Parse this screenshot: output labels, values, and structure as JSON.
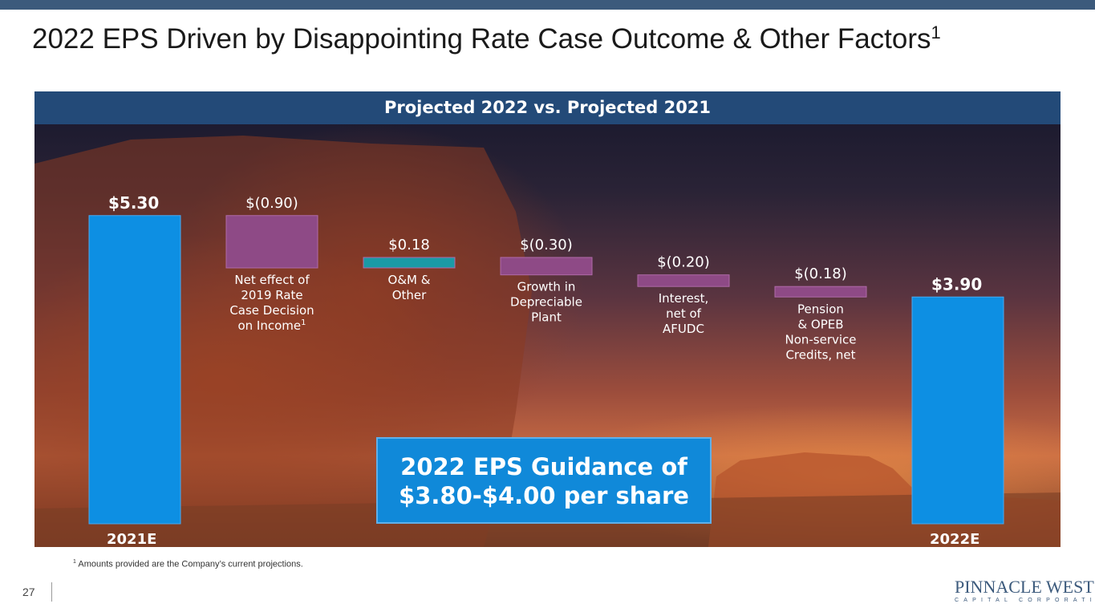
{
  "slide": {
    "title": "2022 EPS Driven by Disappointing Rate Case Outcome & Other Factors",
    "title_superscript": "1",
    "panel_header": "Projected 2022 vs. Projected 2021",
    "guidance_line1": "2022 EPS Guidance of",
    "guidance_line2": "$3.80-$4.00 per share",
    "footnote_marker": "1",
    "footnote": "Amounts provided are the Company’s current projections.",
    "page_number": "27",
    "logo_main": "PINNACLE WEST",
    "logo_sub": "CAPITAL CORPORATION"
  },
  "colors": {
    "total_bar": "#0d8fe3",
    "negative_bar": "#8e4a86",
    "positive_bar": "#1a9aa6",
    "header": "#234a78",
    "topbar": "#3c5a7c"
  },
  "chart_data": {
    "type": "bar",
    "subtype": "waterfall",
    "title": "Projected 2022 vs. Projected 2021",
    "ylim": [
      0,
      5.3
    ],
    "steps": [
      {
        "kind": "total",
        "value": 5.3,
        "value_label": "$5.30",
        "category": [
          "2021E"
        ]
      },
      {
        "kind": "delta",
        "value": -0.9,
        "value_label": "$(0.90)",
        "category": [
          "Net effect of",
          "2019 Rate",
          "Case Decision",
          "on Income"
        ],
        "label_superscript": "1"
      },
      {
        "kind": "delta",
        "value": 0.18,
        "value_label": "$0.18",
        "category": [
          "O&M &",
          "Other"
        ]
      },
      {
        "kind": "delta",
        "value": -0.3,
        "value_label": "$(0.30)",
        "category": [
          "Growth in",
          "Depreciable",
          "Plant"
        ]
      },
      {
        "kind": "delta",
        "value": -0.2,
        "value_label": "$(0.20)",
        "category": [
          "Interest,",
          "net of",
          "AFUDC"
        ]
      },
      {
        "kind": "delta",
        "value": -0.18,
        "value_label": "$(0.18)",
        "category": [
          "Pension",
          "& OPEB",
          "Non-service",
          "Credits, net"
        ]
      },
      {
        "kind": "total",
        "value": 3.9,
        "value_label": "$3.90",
        "category": [
          "2022E"
        ]
      }
    ]
  }
}
